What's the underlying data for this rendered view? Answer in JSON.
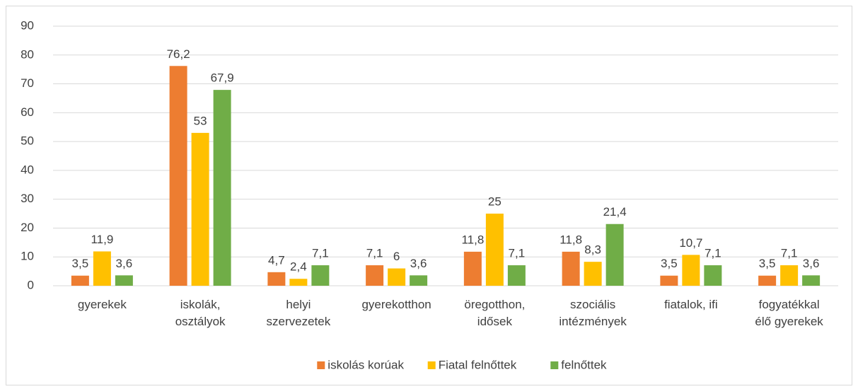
{
  "chart_data": {
    "type": "bar",
    "categories": [
      "gyerekek",
      "iskolák, osztályok",
      "helyi szervezetek",
      "gyerekotthon",
      "öregotthon, idősek",
      "szociális intézmények",
      "fiatalok, ifi",
      "fogyatékkal élő gyerekek"
    ],
    "series": [
      {
        "name": "iskolás korúak",
        "color": "#ed7d31",
        "values": [
          3.5,
          76.2,
          4.7,
          7.1,
          11.8,
          11.8,
          3.5,
          3.5
        ],
        "value_labels": [
          "3,5",
          "76,2",
          "4,7",
          "7,1",
          "11,8",
          "11,8",
          "3,5",
          "3,5"
        ]
      },
      {
        "name": "Fiatal felnőttek",
        "color": "#ffc000",
        "values": [
          11.9,
          53,
          2.4,
          6,
          25,
          8.3,
          10.7,
          7.1
        ],
        "value_labels": [
          "11,9",
          "53",
          "2,4",
          "6",
          "25",
          "8,3",
          "10,7",
          "7,1"
        ]
      },
      {
        "name": "felnőttek",
        "color": "#70ad47",
        "values": [
          3.6,
          67.9,
          7.1,
          3.6,
          7.1,
          21.4,
          7.1,
          3.6
        ],
        "value_labels": [
          "3,6",
          "67,9",
          "7,1",
          "3,6",
          "7,1",
          "21,4",
          "7,1",
          "3,6"
        ]
      }
    ],
    "ylim": [
      0,
      90
    ],
    "yticks": [
      0,
      10,
      20,
      30,
      40,
      50,
      60,
      70,
      80,
      90
    ],
    "grid": true,
    "legend": "bottom"
  }
}
